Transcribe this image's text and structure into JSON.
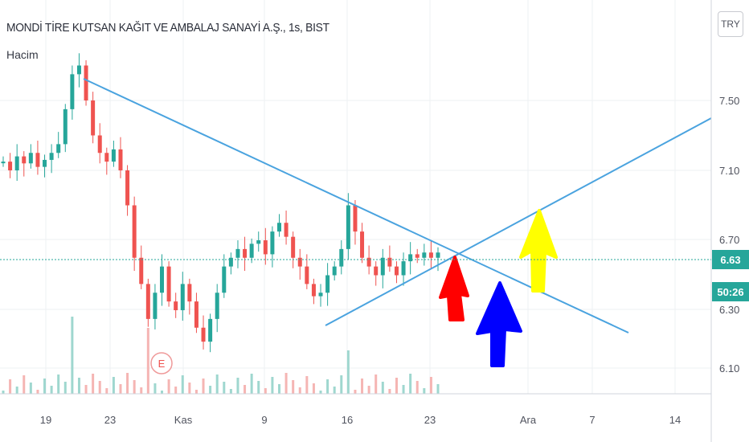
{
  "header": {
    "title": "MONDİ TİRE KUTSAN KAĞIT VE AMBALAJ SANAYİ A.Ş., 1s, BIST",
    "volume_label": "Hacim"
  },
  "currency_button": "TRY",
  "earnings_marker": "E",
  "price_tag": {
    "price": "6.63",
    "countdown": "50:26"
  },
  "colors": {
    "up": "#26a69a",
    "down": "#ef5350",
    "trendline": "#4aa3df",
    "arrow_red": "#ff0000",
    "arrow_blue": "#0000ff",
    "arrow_yellow": "#ffff00",
    "price_line": "#26a69a"
  },
  "chart_data": {
    "type": "candlestick",
    "interval": "1s",
    "y_ticks": [
      "7.50",
      "7.10",
      "6.70",
      "6.30",
      "6.10"
    ],
    "x_ticks": [
      "19",
      "23",
      "Kas",
      "9",
      "16",
      "23",
      "Ara",
      "7",
      "14"
    ],
    "ylim": [
      6.0,
      7.95
    ],
    "last_price": 6.63,
    "close_series": [
      7.15,
      7.1,
      7.18,
      7.14,
      7.2,
      7.12,
      7.16,
      7.2,
      7.25,
      7.45,
      7.65,
      7.7,
      7.5,
      7.3,
      7.2,
      7.15,
      7.22,
      7.1,
      6.9,
      6.6,
      6.45,
      6.25,
      6.4,
      6.55,
      6.35,
      6.3,
      6.45,
      6.35,
      6.2,
      6.12,
      6.25,
      6.4,
      6.55,
      6.6,
      6.65,
      6.6,
      6.68,
      6.7,
      6.62,
      6.75,
      6.8,
      6.72,
      6.6,
      6.55,
      6.45,
      6.38,
      6.4,
      6.5,
      6.55,
      6.65,
      6.9,
      6.75,
      6.6,
      6.55,
      6.5,
      6.6,
      6.55,
      6.5,
      6.58,
      6.62,
      6.6,
      6.63,
      6.6,
      6.63
    ],
    "trendlines": [
      {
        "from": {
          "x": "21 Eki",
          "y": 7.6
        },
        "to": {
          "x": "10 Ara",
          "y": 6.2
        }
      },
      {
        "from": {
          "x": "14 Kas",
          "y": 6.25
        },
        "to": {
          "x": "16 Ara",
          "y": 7.4
        }
      }
    ],
    "annotations": [
      "red-arrow",
      "blue-arrow",
      "yellow-arrow"
    ],
    "volume": true,
    "grid": true
  }
}
